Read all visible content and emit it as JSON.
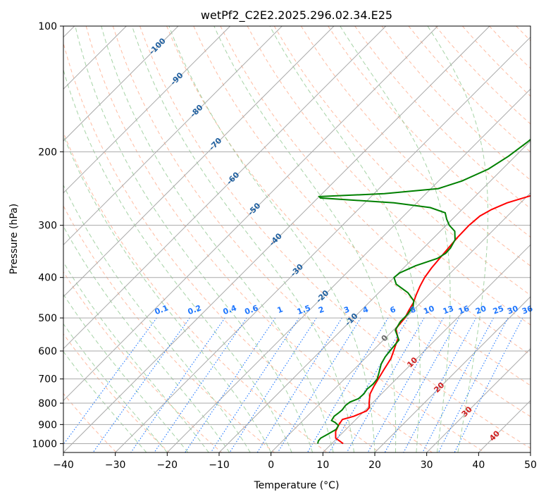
{
  "chart_data": {
    "type": "line",
    "title": "wetPf2_C2E2.2025.296.02.34.E25",
    "xlabel": "Temperature (°C)",
    "ylabel": "Pressure (hPa)",
    "xlim": [
      -40,
      50
    ],
    "ylim": [
      1050,
      100
    ],
    "x_ticks": [
      "−40",
      "−30",
      "−20",
      "−10",
      "0",
      "10",
      "20",
      "30",
      "40",
      "50"
    ],
    "y_ticks": [
      "100",
      "200",
      "300",
      "400",
      "500",
      "600",
      "700",
      "800",
      "900",
      "1000"
    ],
    "grid": true,
    "colors": {
      "temperature": "#ff0000",
      "dewpoint": "#008000",
      "isotherm": "#aaaaaa",
      "dry_adiabat": "#ffa07a",
      "moist_adiabat": "#90c890",
      "mixing_ratio": "#1f77ff",
      "isotherm_label": "#1f5f9f",
      "theta_label": "#d02020"
    },
    "series": [
      {
        "name": "Temperature",
        "points": [
          [
            12.2,
            1000
          ],
          [
            9.7,
            970
          ],
          [
            8.4,
            935
          ],
          [
            7.7,
            900
          ],
          [
            7.4,
            875
          ],
          [
            9.0,
            860
          ],
          [
            10.4,
            835
          ],
          [
            10.3,
            820
          ],
          [
            9.4,
            800
          ],
          [
            8.6,
            780
          ],
          [
            7.8,
            760
          ],
          [
            7.1,
            730
          ],
          [
            6.5,
            700
          ],
          [
            5.8,
            665
          ],
          [
            5.0,
            625
          ],
          [
            3.7,
            590
          ],
          [
            2.5,
            560
          ],
          [
            0.2,
            530
          ],
          [
            -0.1,
            500
          ],
          [
            -0.8,
            480
          ],
          [
            -1.4,
            460
          ],
          [
            -2.4,
            440
          ],
          [
            -3.3,
            420
          ],
          [
            -4.1,
            400
          ],
          [
            -4.6,
            380
          ],
          [
            -4.9,
            360
          ],
          [
            -5.2,
            340
          ],
          [
            -5.5,
            320
          ],
          [
            -5.6,
            300
          ],
          [
            -5.3,
            285
          ],
          [
            -4.3,
            275
          ],
          [
            -2.6,
            265
          ],
          [
            0.5,
            255
          ],
          [
            3.3,
            245
          ],
          [
            5.7,
            235
          ],
          [
            7.3,
            220
          ],
          [
            8.8,
            205
          ],
          [
            10.3,
            190
          ],
          [
            12.5,
            175
          ],
          [
            15.3,
            160
          ],
          [
            17.6,
            148
          ],
          [
            19.6,
            138
          ],
          [
            21.7,
            128
          ],
          [
            24.1,
            118
          ],
          [
            26.4,
            110
          ],
          [
            28.7,
            103
          ],
          [
            29.7,
            100
          ]
        ]
      },
      {
        "name": "Dewpoint",
        "points": [
          [
            7.3,
            1000
          ],
          [
            6.9,
            985
          ],
          [
            6.8,
            970
          ],
          [
            7.4,
            950
          ],
          [
            8.1,
            925
          ],
          [
            7.8,
            905
          ],
          [
            6.6,
            890
          ],
          [
            5.5,
            880
          ],
          [
            5.2,
            860
          ],
          [
            5.4,
            845
          ],
          [
            5.5,
            830
          ],
          [
            5.3,
            810
          ],
          [
            5.5,
            795
          ],
          [
            6.5,
            780
          ],
          [
            6.6,
            760
          ],
          [
            6.3,
            740
          ],
          [
            6.5,
            720
          ],
          [
            6.3,
            700
          ],
          [
            5.4,
            675
          ],
          [
            4.2,
            645
          ],
          [
            3.6,
            620
          ],
          [
            3.3,
            595
          ],
          [
            3.0,
            565
          ],
          [
            0.4,
            535
          ],
          [
            -0.3,
            510
          ],
          [
            -0.3,
            490
          ],
          [
            -0.7,
            470
          ],
          [
            -1.7,
            455
          ],
          [
            -4.4,
            435
          ],
          [
            -8.3,
            415
          ],
          [
            -10.0,
            400
          ],
          [
            -9.8,
            390
          ],
          [
            -8.1,
            375
          ],
          [
            -5.3,
            360
          ],
          [
            -4.7,
            350
          ],
          [
            -4.8,
            340
          ],
          [
            -5.5,
            325
          ],
          [
            -7.2,
            310
          ],
          [
            -9.4,
            300
          ],
          [
            -11.1,
            290
          ],
          [
            -12.6,
            280
          ],
          [
            -16.5,
            272
          ],
          [
            -24.4,
            265
          ],
          [
            -39.5,
            258
          ],
          [
            -40.0,
            256
          ],
          [
            -28.0,
            252
          ],
          [
            -18.6,
            245
          ],
          [
            -15.5,
            235
          ],
          [
            -12.7,
            220
          ],
          [
            -11.3,
            205
          ],
          [
            -10.4,
            190
          ],
          [
            -9.8,
            175
          ],
          [
            -10.1,
            160
          ],
          [
            -11.0,
            145
          ],
          [
            -8.5,
            133
          ],
          [
            -6.9,
            122
          ],
          [
            -5.8,
            115
          ],
          [
            -3.4,
            106
          ],
          [
            -0.5,
            100
          ]
        ]
      }
    ],
    "isotherm_labels": [
      "-100",
      "-90",
      "-80",
      "-70",
      "-60",
      "-50",
      "-40",
      "-30",
      "-20",
      "-10",
      "0",
      "10",
      "20",
      "30",
      "40"
    ],
    "mixing_ratio_labels": [
      "0.1",
      "0.2",
      "0.4",
      "0.6",
      "1",
      "1.5",
      "2",
      "3",
      "4",
      "6",
      "8",
      "10",
      "13",
      "16",
      "20",
      "25",
      "30",
      "36"
    ]
  }
}
